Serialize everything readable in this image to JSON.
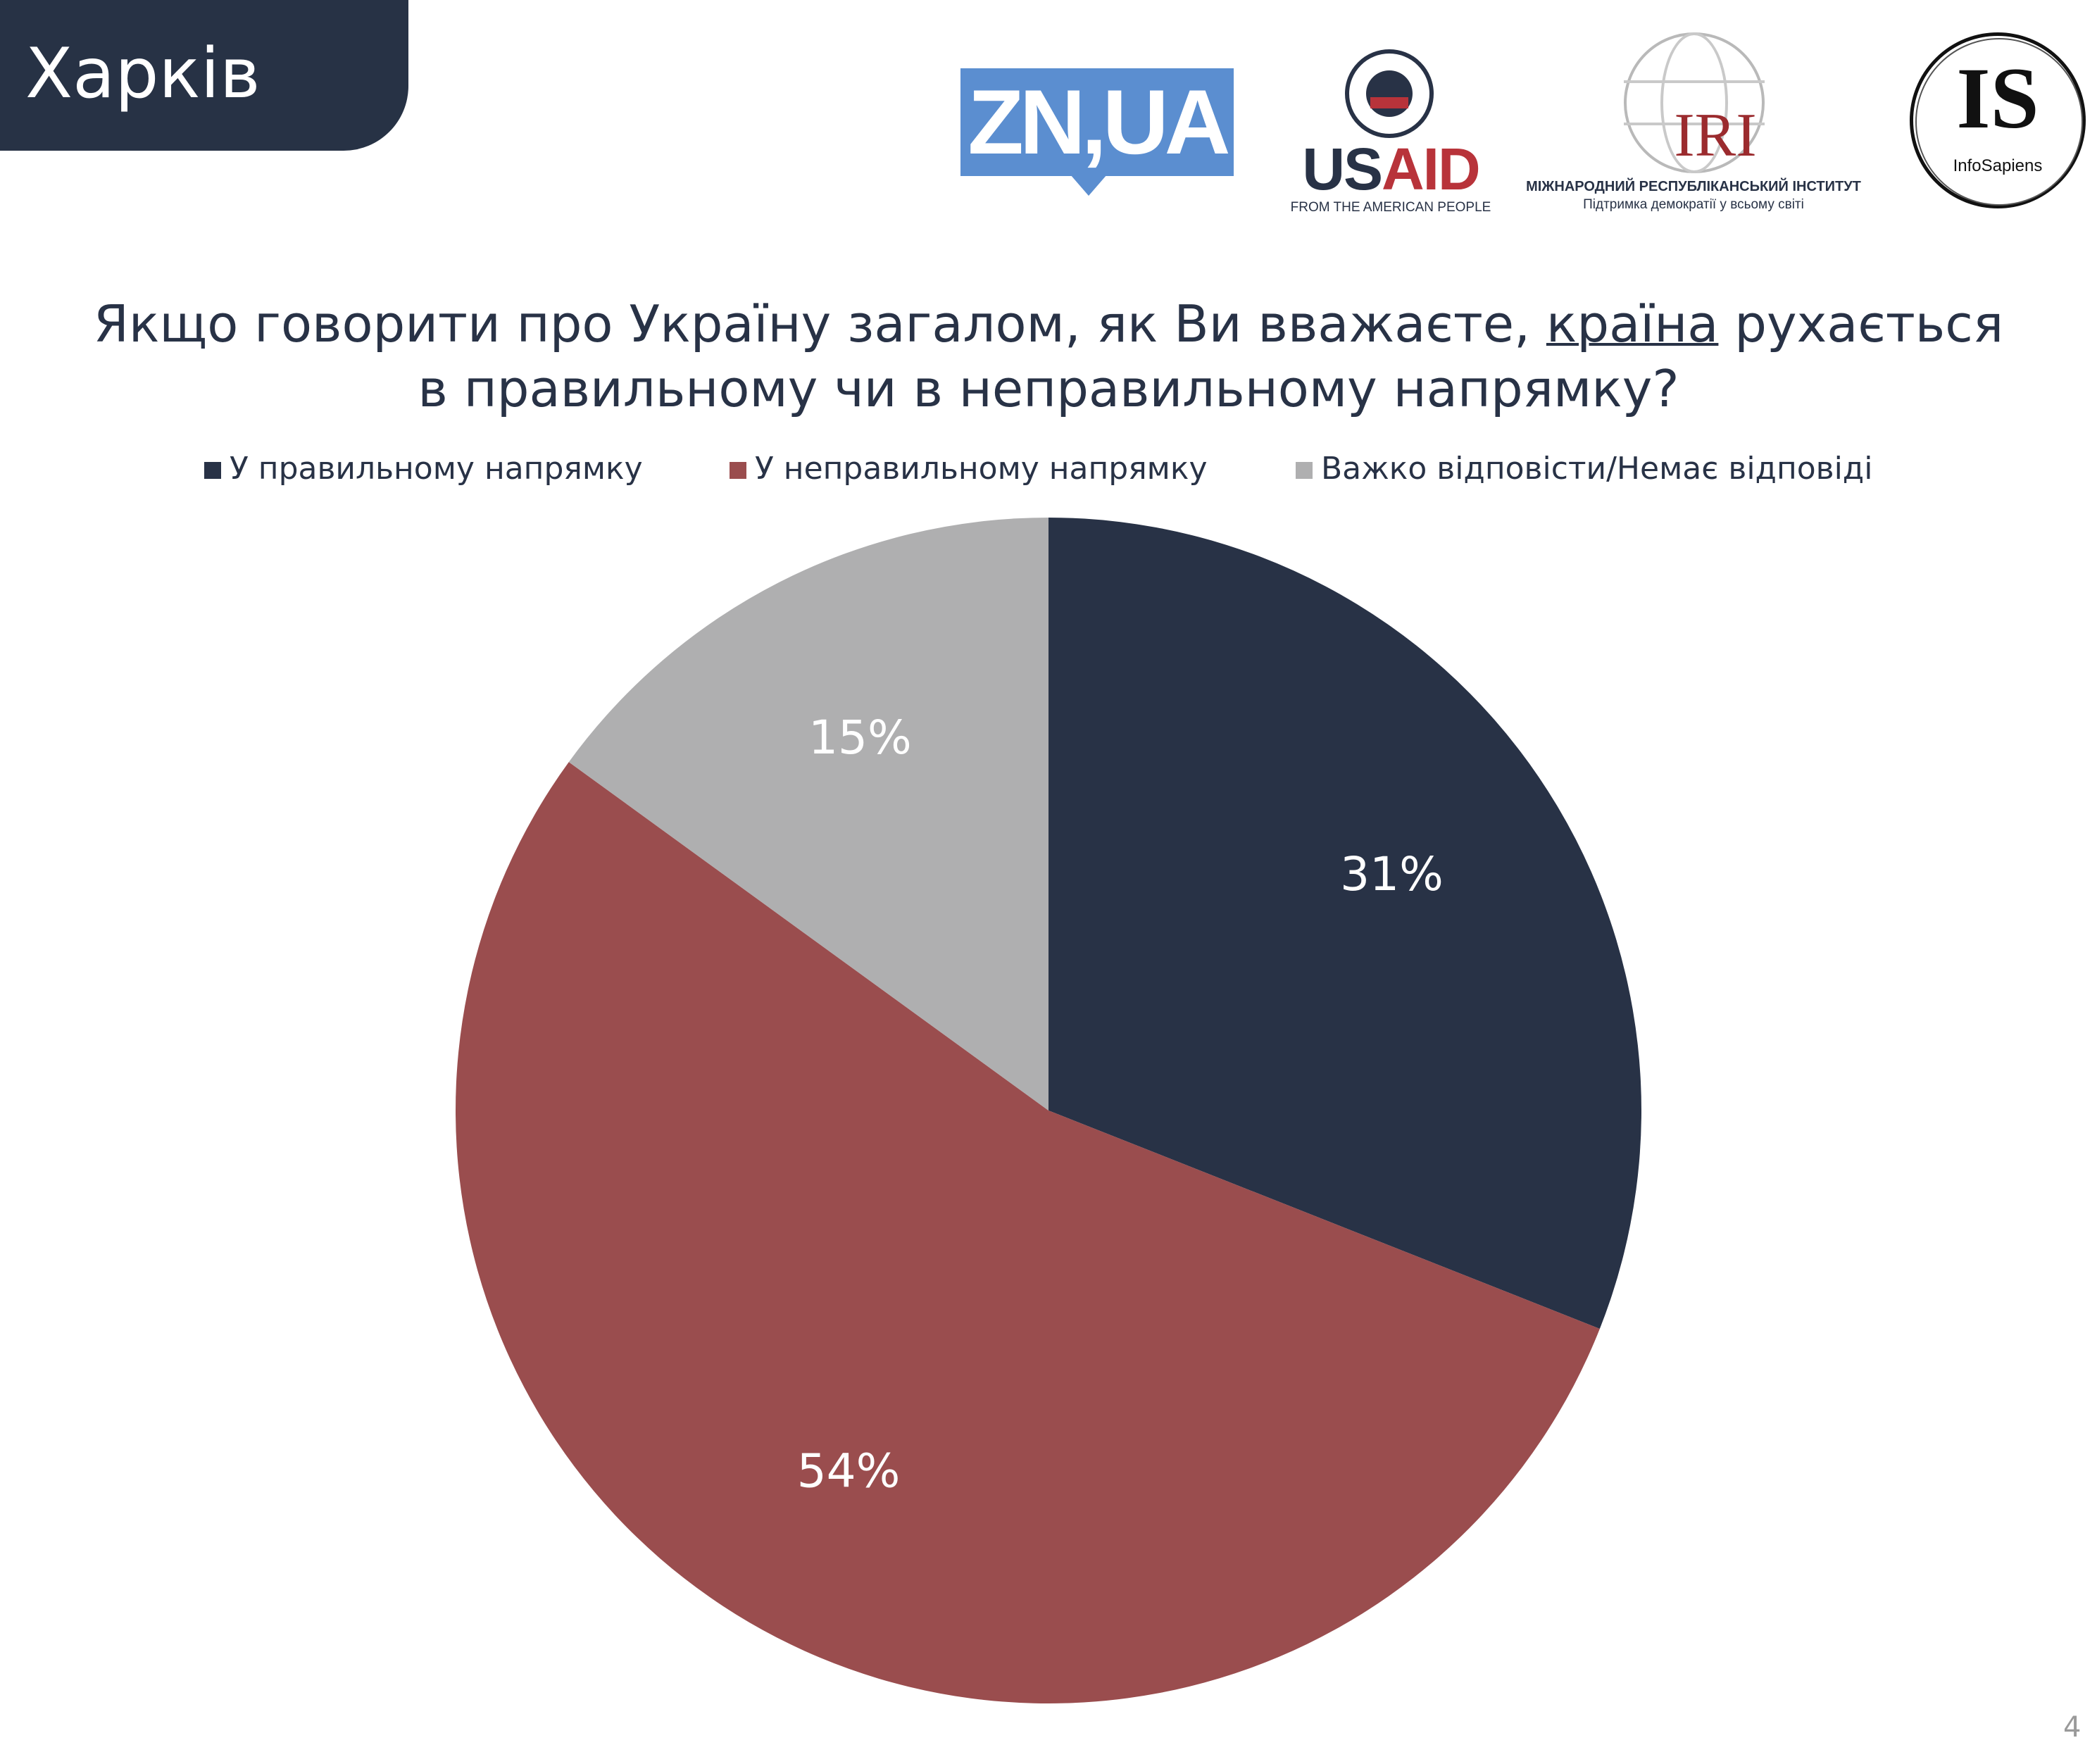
{
  "region": {
    "label": "Харків"
  },
  "logos": {
    "zn": "ZN,UA",
    "usaid_part1": "US",
    "usaid_part2": "AID",
    "usaid_tagline": "FROM THE AMERICAN PEOPLE",
    "iri": "IRI",
    "iri_tagline1": "МІЖНАРОДНИЙ РЕСПУБЛІКАНСЬКИЙ ІНСТИТУТ",
    "iri_tagline2": "Підтримка демократії у всьому світі",
    "is": "IS",
    "is_tagline": "InfoSapiens"
  },
  "colors": {
    "header_bg": "#273245",
    "zn_blue": "#5b8ed0",
    "usaid_red": "#b8333a",
    "iri_red": "#9b2b2e"
  },
  "chart_data": {
    "type": "pie",
    "title_part1": "Якщо говорити про Україну загалом, як Ви вважаєте, ",
    "title_underlined": "країна",
    "title_part2": " рухається",
    "title_line2": "в правильному чи в неправильному напрямку?",
    "legend_position": "top",
    "start_angle_deg": 0,
    "direction": "clockwise",
    "slices": [
      {
        "label": "У правильному напрямку",
        "value": 31,
        "display": "31%",
        "color": "#283246"
      },
      {
        "label": "У неправильному напрямку",
        "value": 54,
        "display": "54%",
        "color": "#9a4d4e"
      },
      {
        "label": "Важко відповісти/Немає відповіді",
        "value": 15,
        "display": "15%",
        "color": "#afafb0"
      }
    ]
  },
  "page": {
    "number": "4"
  }
}
